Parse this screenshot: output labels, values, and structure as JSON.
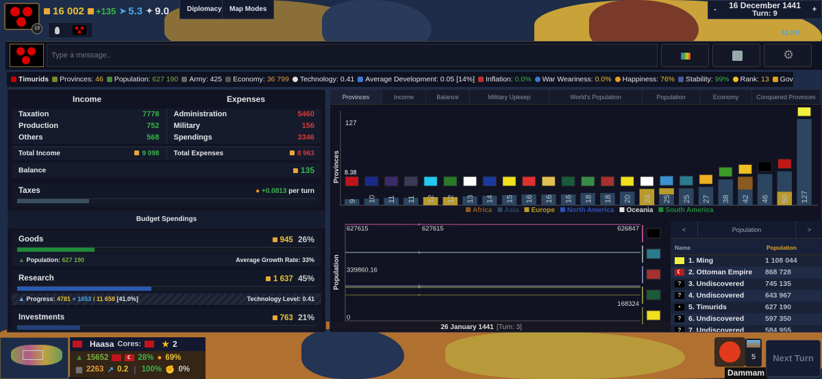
{
  "colors": {
    "gold": "#e9c13a",
    "green": "#3bb34a",
    "red": "#d43b3b",
    "blue": "#4aa8e6",
    "asia": "#2c4560",
    "europe": "#b89a2c",
    "africa": "#8a5a20",
    "north_america": "#2f4fb8",
    "oceania": "#e6e6e6",
    "south_america": "#1e8a3a"
  },
  "top": {
    "gold": "16 002",
    "income": "+135",
    "military": "5.3",
    "diplomacy_points": "9.0",
    "emblem_badge": "13",
    "diplomacy_label": "Diplomacy",
    "map_modes_label": "Map Modes",
    "date": "16 December 1441",
    "turn": "Turn: 9",
    "minus": "-",
    "plus": "+",
    "research_pct": "41.0%"
  },
  "chat": {
    "placeholder": "Type a message..",
    "icons": [
      "stats-icon",
      "save-icon",
      "settings-icon"
    ]
  },
  "stats": {
    "country": "Timurids",
    "provinces_label": "Provinces:",
    "provinces": "46",
    "population_label": "Population:",
    "population": "627 190",
    "army_label": "Army:",
    "army": "425",
    "economy_label": "Economy:",
    "economy": "36 799",
    "technology_label": "Technology:",
    "technology": "0.41",
    "avg_dev_label": "Average Development:",
    "avg_dev": "0.05 [14%]",
    "inflation_label": "Inflation:",
    "inflation": "0.0%",
    "war_label": "War Weariness:",
    "war": "0.0%",
    "happiness_label": "Happiness:",
    "happiness": "76%",
    "stability_label": "Stability:",
    "stability": "99%",
    "rank_label": "Rank:",
    "rank": "13",
    "gov_label": "Gov"
  },
  "budget": {
    "income_title": "Income",
    "expenses_title": "Expenses",
    "income": [
      {
        "label": "Taxation",
        "value": "7778"
      },
      {
        "label": "Production",
        "value": "752"
      },
      {
        "label": "Others",
        "value": "568"
      }
    ],
    "expenses": [
      {
        "label": "Administration",
        "value": "5460"
      },
      {
        "label": "Military",
        "value": "156"
      },
      {
        "label": "Spendings",
        "value": "3346"
      }
    ],
    "total_income_label": "Total Income",
    "total_income": "9 098",
    "total_expenses_label": "Total Expenses",
    "total_expenses": "8 963",
    "balance_label": "Balance",
    "balance": "135",
    "taxes_label": "Taxes",
    "taxes_rate": "+0.0813",
    "taxes_suffix": "per turn",
    "taxes_level": 0.08,
    "spendings_title": "Budget Spendings",
    "goods": {
      "label": "Goods",
      "amount": "945",
      "pct": "26%",
      "fill": 0.26,
      "pop_label": "Population:",
      "pop": "627 190",
      "growth": "Average Growth Rate: 33%"
    },
    "research": {
      "label": "Research",
      "amount": "1 637",
      "pct": "45%",
      "fill": 0.45,
      "progress_label": "Progress:",
      "progress_a": "4781",
      "progress_b": "+ 1653",
      "progress_c": "/ 11 658",
      "progress_pct": "[41.0%]",
      "tech": "Technology Level: 0.41"
    },
    "investments": {
      "label": "Investments",
      "amount": "763",
      "pct": "21%",
      "fill": 0.21
    }
  },
  "tabs": [
    "Provinces",
    "Income",
    "Balance",
    "Military Upkeep",
    "World's Population",
    "Population",
    "Economy",
    "Conquered Provinces"
  ],
  "chart_data": [
    {
      "type": "bar",
      "ylabel": "Provinces",
      "ymax_label": "127",
      "ylim": [
        0,
        127
      ],
      "overlay_label": "8.38",
      "categories_flags": [
        "#c0141c",
        "#1a2a8a",
        "#3a2a6a",
        "#3a3a5a",
        "#22c8f0",
        "#2a7a2a",
        "#ffffff",
        "#1a3aa0",
        "#f0e020",
        "#e03030",
        "#e0c050",
        "#1a5a3a",
        "#3a8a4a",
        "#a83030",
        "#f0e020",
        "#ffffff",
        "#3a90d0",
        "#2a7a90",
        "#f0b020",
        "#3a9a2a",
        "#f0c020",
        "#000000",
        "#c01818",
        "#f0f040"
      ],
      "values": [
        9,
        10,
        11,
        11,
        12,
        12,
        13,
        14,
        15,
        16,
        16,
        16,
        18,
        18,
        20,
        24,
        25,
        25,
        27,
        38,
        42,
        46,
        50,
        127
      ],
      "series": [
        {
          "name": "Asia",
          "values": [
            9,
            10,
            11,
            11,
            0,
            0,
            13,
            14,
            15,
            16,
            16,
            16,
            18,
            18,
            20,
            0,
            16,
            25,
            27,
            38,
            23,
            46,
            30,
            127
          ]
        },
        {
          "name": "Europe",
          "values": [
            0,
            0,
            0,
            0,
            12,
            12,
            0,
            0,
            0,
            0,
            0,
            0,
            0,
            0,
            0,
            24,
            9,
            0,
            0,
            0,
            0,
            0,
            20,
            0
          ]
        },
        {
          "name": "Africa",
          "values": [
            0,
            0,
            0,
            0,
            0,
            0,
            0,
            0,
            0,
            0,
            0,
            0,
            0,
            0,
            0,
            0,
            0,
            0,
            0,
            0,
            19,
            0,
            0,
            0
          ]
        }
      ],
      "legend": [
        "Africa",
        "Asia",
        "Europe",
        "North America",
        "Oceania",
        "South America"
      ],
      "legend_position": "bottom"
    },
    {
      "type": "line",
      "ylabel": "Population",
      "ytick_labels": [
        "627615",
        "339860.16",
        "0"
      ],
      "ylim": [
        0,
        627615
      ],
      "xlabel": "26 January 1441",
      "xlabel_turn": "[Turn: 3]",
      "series": [
        {
          "color": "#b04a8a",
          "values": [
            627615,
            626847
          ],
          "start_label": "627615",
          "end_label": "626847"
        },
        {
          "color": "#8a9aa0",
          "values": [
            445000,
            445000
          ]
        },
        {
          "color": "#7a7ab0",
          "values": [
            227000,
            227000
          ]
        },
        {
          "color": "#8a8a40",
          "values": [
            218000,
            218000
          ]
        },
        {
          "color": "#6a6a30",
          "values": [
            168324,
            168324
          ],
          "end_label": "168324"
        }
      ],
      "legend_flags": [
        "#000000",
        "#2a7a90",
        "#a83030",
        "#1a5a3a",
        "#f0e020"
      ]
    }
  ],
  "ranking": {
    "prev": "<",
    "next": ">",
    "title": "Population",
    "col_name": "Name",
    "col_value": "Population",
    "rows": [
      {
        "name": "1. Ming",
        "value": "1 108 044",
        "flag": "#f0f040",
        "mark": ""
      },
      {
        "name": "2. Ottoman Empire",
        "value": "868 728",
        "flag": "#c01818",
        "mark": "☾"
      },
      {
        "name": "3. Undiscovered",
        "value": "745 135",
        "flag": "#000000",
        "mark": "?"
      },
      {
        "name": "4. Undiscovered",
        "value": "643 967",
        "flag": "#000000",
        "mark": "?"
      },
      {
        "name": "5. Timurids",
        "value": "627 190",
        "flag": "#000000",
        "mark": "•"
      },
      {
        "name": "6. Undiscovered",
        "value": "597 350",
        "flag": "#000000",
        "mark": "?"
      },
      {
        "name": "7. Undiscovered",
        "value": "584 955",
        "flag": "#000000",
        "mark": "?"
      }
    ]
  },
  "province": {
    "name": "Haasa",
    "cores_label": "Cores:",
    "stars": "2",
    "population": "15652",
    "growth": "28%",
    "happiness": "69%",
    "economy": "2263",
    "development": "0.2",
    "stability": "100%",
    "unrest": "0%"
  },
  "city": {
    "name": "Dammam",
    "count": "5",
    "next_turn": "Next Turn"
  }
}
